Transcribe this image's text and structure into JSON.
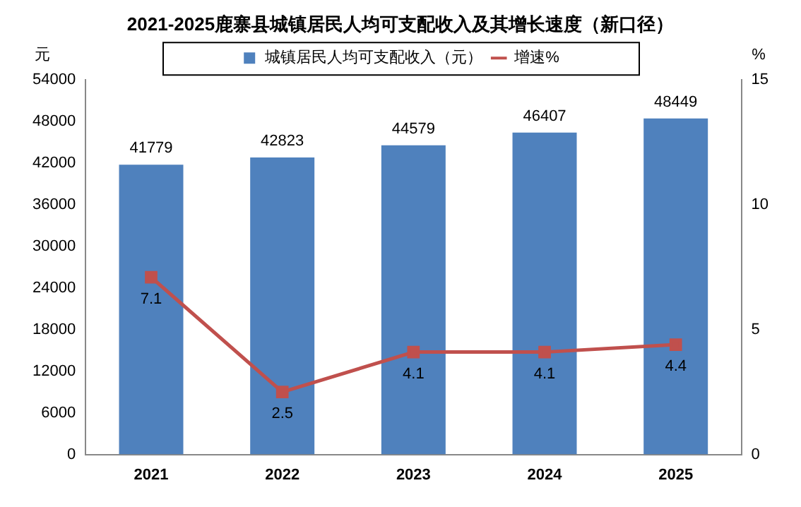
{
  "chart_data": {
    "type": "bar",
    "title": "2021-2025鹿寨县城镇居民人均可支配收入及其增长速度（新口径）",
    "ylabel": "元",
    "y2label": "%",
    "categories": [
      "2021",
      "2022",
      "2023",
      "2024",
      "2025"
    ],
    "series": [
      {
        "name": "城镇居民人均可支配收入（元）",
        "color": "#4f81bd",
        "values": [
          41779,
          42823,
          44579,
          46407,
          48449
        ]
      },
      {
        "name": "增速%",
        "type": "line",
        "axis": "y2",
        "color": "#c0504d",
        "values": [
          7.1,
          2.5,
          4.1,
          4.1,
          4.4
        ]
      }
    ],
    "ylim": [
      0,
      54000
    ],
    "yticks": [
      0,
      6000,
      12000,
      18000,
      24000,
      30000,
      36000,
      42000,
      48000,
      54000
    ],
    "y2lim": [
      0,
      15
    ],
    "y2ticks": [
      0,
      5,
      10,
      15
    ],
    "data_labels": true,
    "legend": "top",
    "marker": "square",
    "line_style": "solid",
    "grid": false
  }
}
